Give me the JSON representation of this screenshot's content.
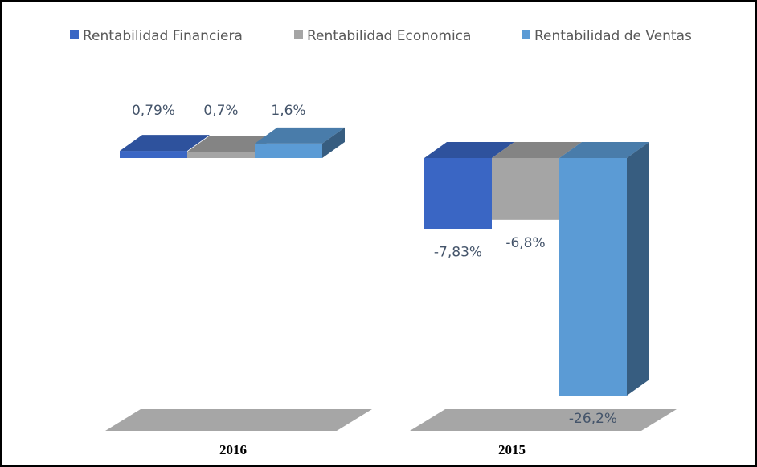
{
  "chart_data": {
    "type": "bar3d",
    "categories": [
      "2016",
      "2015"
    ],
    "series": [
      {
        "name": "Rentabilidad Financiera",
        "color": "#3a66c4",
        "values": [
          0.79,
          -7.83
        ],
        "value_labels": [
          "0,79%",
          "-7,83%"
        ]
      },
      {
        "name": "Rentabilidad Economica",
        "color": "#a5a5a5",
        "values": [
          0.7,
          -6.8
        ],
        "value_labels": [
          "0,7%",
          "-6,8%"
        ]
      },
      {
        "name": "Rentabilidad de Ventas",
        "color": "#5b9bd5",
        "values": [
          1.6,
          -26.2
        ],
        "value_labels": [
          "1,6%",
          "-26,2%"
        ]
      }
    ],
    "legend": "top"
  }
}
